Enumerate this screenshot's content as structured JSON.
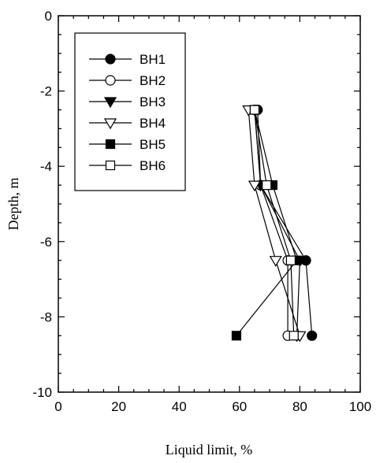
{
  "chart_data": {
    "type": "line",
    "xlabel": "Liquid limit, %",
    "ylabel": "Depth, m",
    "xlim": [
      0,
      100
    ],
    "ylim": [
      -10,
      0
    ],
    "x_ticks": [
      "0",
      "20",
      "40",
      "60",
      "80",
      "100"
    ],
    "y_ticks": [
      "0",
      "-2",
      "-4",
      "-6",
      "-8",
      "-10"
    ],
    "grid": false,
    "legend_placement": "top-left",
    "series": [
      {
        "name": "BH1",
        "marker": "circle-filled",
        "x": [
          66,
          67,
          82,
          84
        ],
        "y": [
          -2.5,
          -4.5,
          -6.5,
          -8.5
        ]
      },
      {
        "name": "BH2",
        "marker": "circle-open",
        "x": [
          65,
          67,
          76,
          76
        ],
        "y": [
          -2.5,
          -4.5,
          -6.5,
          -8.5
        ]
      },
      {
        "name": "BH3",
        "marker": "triangle-down-filled",
        "x": [
          65,
          67,
          80,
          79
        ],
        "y": [
          -2.5,
          -4.5,
          -6.5,
          -8.5
        ]
      },
      {
        "name": "BH4",
        "marker": "triangle-down-open",
        "x": [
          63,
          65,
          72,
          80
        ],
        "y": [
          -2.5,
          -4.5,
          -6.5,
          -8.5
        ]
      },
      {
        "name": "BH5",
        "marker": "square-filled",
        "x": [
          65,
          71,
          79,
          59
        ],
        "y": [
          -2.5,
          -4.5,
          -6.5,
          -8.5
        ]
      },
      {
        "name": "BH6",
        "marker": "square-open",
        "x": [
          65,
          69,
          77,
          78
        ],
        "y": [
          -2.5,
          -4.5,
          -6.5,
          -8.5
        ]
      }
    ]
  }
}
